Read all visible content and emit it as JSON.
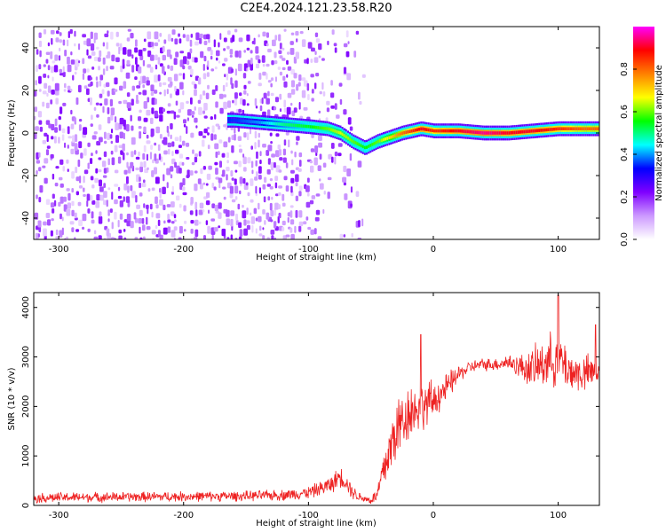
{
  "title": "C2E4.2024.121.23.58.R20",
  "chart_data": [
    {
      "type": "heatmap",
      "name": "spectrogram",
      "xlabel": "Height of straight line (km)",
      "ylabel": "Frequency (Hz)",
      "xlim": [
        -320,
        133
      ],
      "ylim": [
        -50,
        50
      ],
      "xticks": [
        -300,
        -200,
        -100,
        0,
        100
      ],
      "yticks": [
        -40,
        -20,
        0,
        20,
        40
      ],
      "colorbar": {
        "label": "Normalized spectral amplitude",
        "range": [
          0,
          1
        ],
        "ticks": [
          0.0,
          0.2,
          0.4,
          0.6,
          0.8
        ],
        "colors": [
          "#ffffff",
          "#cc99ff",
          "#7f00ff",
          "#0000ff",
          "#00ffff",
          "#00ff00",
          "#ffff00",
          "#ff8000",
          "#ff0000",
          "#ff00ff"
        ]
      },
      "noise_region": {
        "x": [
          -320,
          -55
        ],
        "amplitude": 0.2
      },
      "track": {
        "x": [
          -160,
          -140,
          -120,
          -100,
          -85,
          -75,
          -65,
          -55,
          -45,
          -35,
          -25,
          -10,
          0,
          20,
          40,
          60,
          80,
          100,
          120,
          133
        ],
        "y": [
          6,
          5,
          4,
          3,
          2,
          0,
          -4,
          -7,
          -4,
          -2,
          0,
          2,
          1,
          1,
          0,
          0,
          1,
          2,
          2,
          2
        ],
        "amplitude": [
          0.35,
          0.4,
          0.5,
          0.55,
          0.6,
          0.65,
          0.6,
          0.55,
          0.6,
          0.7,
          0.8,
          0.9,
          0.85,
          0.9,
          0.95,
          0.9,
          0.9,
          0.85,
          0.8,
          0.8
        ]
      }
    },
    {
      "type": "line",
      "name": "snr",
      "xlabel": "Height of straight line (km)",
      "ylabel": "SNR (10 * v/v)",
      "xlim": [
        -320,
        133
      ],
      "ylim": [
        0,
        4300
      ],
      "xticks": [
        -300,
        -200,
        -100,
        0,
        100
      ],
      "yticks": [
        0,
        1000,
        2000,
        3000,
        4000
      ],
      "color": "#ee2222",
      "x": [
        -320,
        -300,
        -250,
        -200,
        -150,
        -120,
        -100,
        -90,
        -80,
        -75,
        -70,
        -65,
        -60,
        -55,
        -50,
        -45,
        -40,
        -35,
        -30,
        -25,
        -20,
        -15,
        -10,
        -5,
        0,
        5,
        10,
        15,
        20,
        30,
        40,
        50,
        60,
        70,
        80,
        90,
        100,
        110,
        120,
        133
      ],
      "y": [
        150,
        160,
        170,
        180,
        190,
        210,
        260,
        340,
        450,
        600,
        480,
        280,
        180,
        140,
        100,
        200,
        700,
        1100,
        1500,
        1700,
        1900,
        1950,
        2000,
        2050,
        2100,
        2250,
        2350,
        2500,
        2650,
        2800,
        2850,
        2850,
        2900,
        2800,
        2750,
        2900,
        3000,
        2700,
        2650,
        2700
      ],
      "noise": [
        120,
        120,
        120,
        120,
        120,
        130,
        150,
        180,
        220,
        250,
        220,
        180,
        120,
        100,
        100,
        200,
        500,
        700,
        800,
        800,
        700,
        650,
        600,
        550,
        500,
        400,
        350,
        300,
        200,
        150,
        150,
        150,
        200,
        300,
        500,
        600,
        700,
        500,
        450,
        450
      ],
      "spikes": [
        {
          "x": -10,
          "y": 3450
        },
        {
          "x": 100,
          "y": 4250
        },
        {
          "x": 130,
          "y": 3650
        }
      ]
    }
  ]
}
